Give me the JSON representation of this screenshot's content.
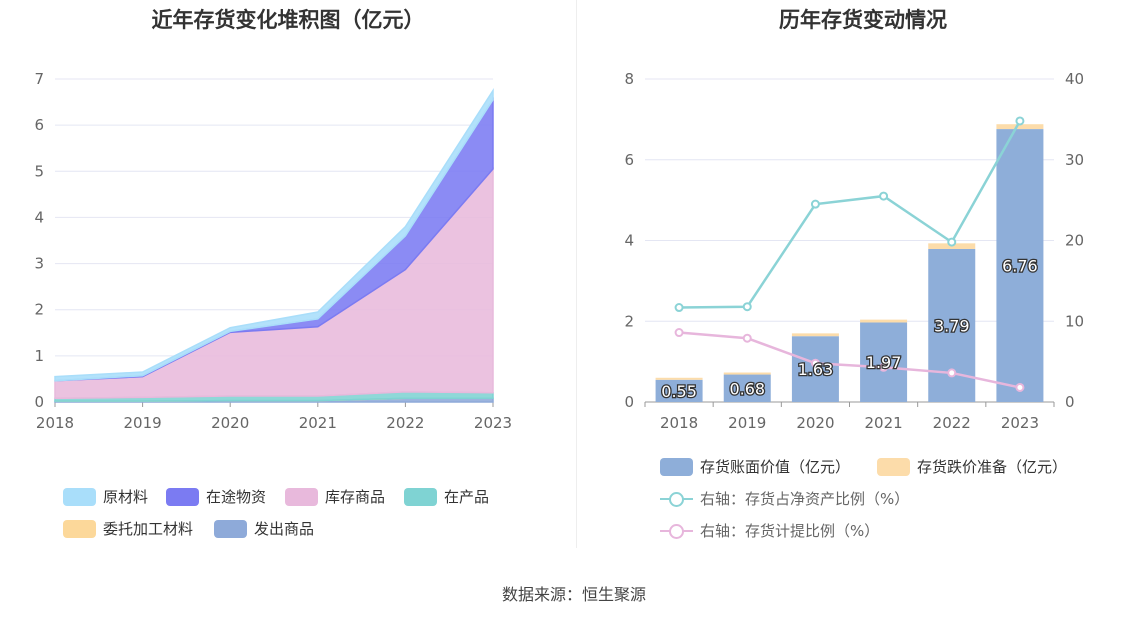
{
  "source_text": "数据来源：恒生聚源",
  "chart_data": [
    {
      "type": "area",
      "stacked": true,
      "title": "近年存货变化堆积图（亿元）",
      "categories": [
        "2018",
        "2019",
        "2020",
        "2021",
        "2022",
        "2023"
      ],
      "ylim": [
        0,
        7
      ],
      "yticks": [
        "0",
        "1",
        "2",
        "3",
        "4",
        "5",
        "6",
        "7"
      ],
      "grid": true,
      "legend_position": "bottom",
      "series": [
        {
          "name": "发出商品",
          "color": "#8eaad9",
          "values": [
            0.02,
            0.02,
            0.03,
            0.03,
            0.08,
            0.08
          ]
        },
        {
          "name": "委托加工材料",
          "color": "#fcd89a",
          "values": [
            0.0,
            0.0,
            0.0,
            0.0,
            0.0,
            0.0
          ]
        },
        {
          "name": "在产品",
          "color": "#7fd3d3",
          "values": [
            0.06,
            0.08,
            0.1,
            0.1,
            0.14,
            0.12
          ]
        },
        {
          "name": "库存商品",
          "color": "#e8b9dc",
          "values": [
            0.38,
            0.45,
            1.38,
            1.5,
            2.65,
            4.85
          ]
        },
        {
          "name": "在途物资",
          "color": "#7b7bf2",
          "values": [
            0.0,
            0.02,
            0.02,
            0.17,
            0.73,
            1.5
          ]
        },
        {
          "name": "原材料",
          "color": "#a9defa",
          "values": [
            0.09,
            0.08,
            0.08,
            0.15,
            0.2,
            0.2
          ]
        }
      ],
      "legend_order": [
        "原材料",
        "在途物资",
        "库存商品",
        "在产品",
        "委托加工材料",
        "发出商品"
      ]
    },
    {
      "type": "bar",
      "stacked": true,
      "title": "历年存货变动情况",
      "categories": [
        "2018",
        "2019",
        "2020",
        "2021",
        "2022",
        "2023"
      ],
      "ylim": [
        0,
        8
      ],
      "yticks": [
        "0",
        "2",
        "4",
        "6",
        "8"
      ],
      "y2lim": [
        0,
        40
      ],
      "y2ticks": [
        "0",
        "10",
        "20",
        "30",
        "40"
      ],
      "grid": true,
      "legend_position": "bottom",
      "series": [
        {
          "name": "存货账面价值（亿元）",
          "color": "#8eaed9",
          "values": [
            0.55,
            0.68,
            1.63,
            1.97,
            3.79,
            6.76
          ],
          "labels": [
            "0.55",
            "0.68",
            "1.63",
            "1.97",
            "3.79",
            "6.76"
          ]
        },
        {
          "name": "存货跌价准备（亿元）",
          "color": "#fcdcaa",
          "values": [
            0.05,
            0.05,
            0.07,
            0.07,
            0.14,
            0.12
          ]
        }
      ],
      "line_series": [
        {
          "name": "右轴：存货占净资产比例（%）",
          "color": "#8bd3d6",
          "axis": "right",
          "values": [
            11.7,
            11.8,
            24.5,
            25.5,
            19.8,
            34.8
          ]
        },
        {
          "name": "右轴：存货计提比例（%）",
          "color": "#e7b6dc",
          "axis": "right",
          "values": [
            8.6,
            7.9,
            4.8,
            4.3,
            3.6,
            1.8
          ]
        }
      ]
    }
  ]
}
